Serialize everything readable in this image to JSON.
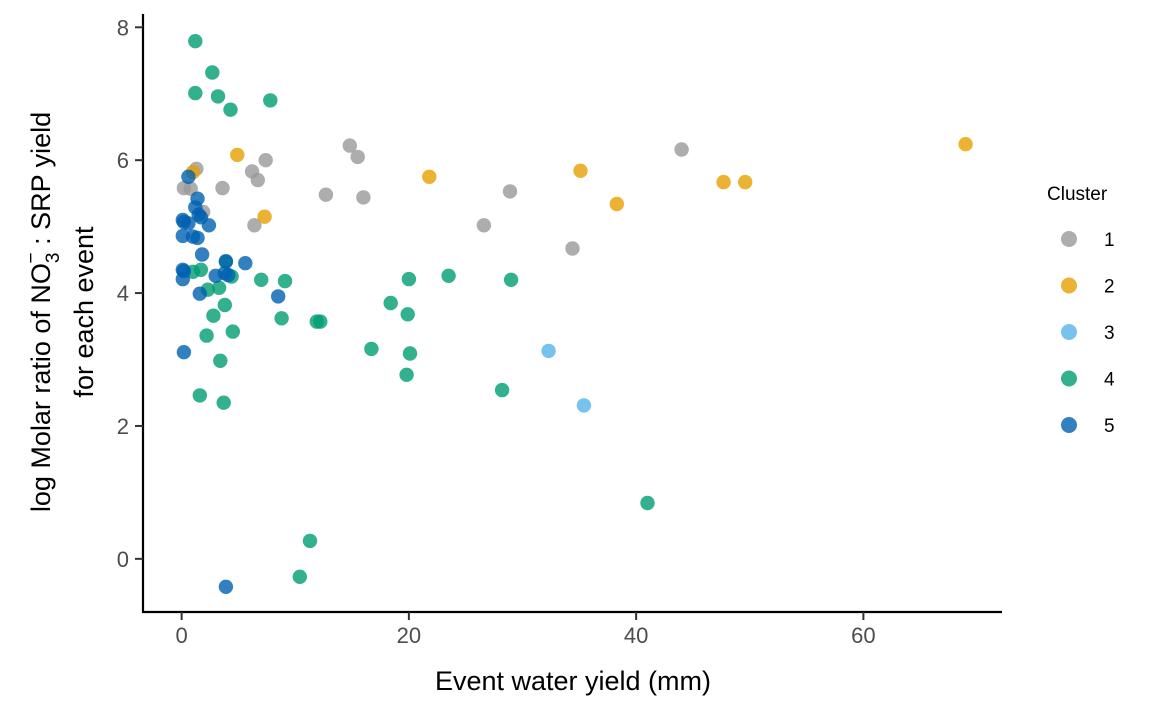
{
  "chart_data": {
    "type": "scatter",
    "xlabel": "Event water yield (mm)",
    "ylabel_line1_pre": "log Molar ratio of NO",
    "ylabel_line1_sub": "3",
    "ylabel_line1_sup": "−",
    "ylabel_line1_post": " : SRP yield",
    "ylabel_line2": "for each event",
    "xlim": [
      -3.4,
      72.2
    ],
    "ylim": [
      -0.8,
      8.2
    ],
    "x_ticks": [
      0,
      20,
      40,
      60
    ],
    "y_ticks": [
      0,
      2,
      4,
      6,
      8
    ],
    "grid": false,
    "legend": {
      "title": "Cluster",
      "position": "right"
    },
    "series": [
      {
        "name": "1",
        "color": "#999999",
        "points": [
          [
            0.2,
            5.58
          ],
          [
            0.8,
            5.57
          ],
          [
            1.3,
            5.87
          ],
          [
            1.9,
            5.22
          ],
          [
            3.6,
            5.58
          ],
          [
            6.2,
            5.83
          ],
          [
            6.7,
            5.7
          ],
          [
            7.4,
            6.0
          ],
          [
            6.4,
            5.02
          ],
          [
            12.7,
            5.48
          ],
          [
            14.8,
            6.22
          ],
          [
            15.5,
            6.05
          ],
          [
            16.0,
            5.44
          ],
          [
            26.6,
            5.02
          ],
          [
            28.9,
            5.53
          ],
          [
            34.4,
            4.67
          ],
          [
            44.0,
            6.16
          ]
        ]
      },
      {
        "name": "2",
        "color": "#E69F00",
        "points": [
          [
            1.0,
            5.82
          ],
          [
            4.9,
            6.08
          ],
          [
            7.3,
            5.15
          ],
          [
            21.8,
            5.75
          ],
          [
            35.1,
            5.84
          ],
          [
            38.3,
            5.34
          ],
          [
            47.7,
            5.67
          ],
          [
            49.6,
            5.67
          ],
          [
            69.0,
            6.24
          ]
        ]
      },
      {
        "name": "3",
        "color": "#56B4E9",
        "points": [
          [
            32.3,
            3.13
          ],
          [
            35.4,
            2.31
          ]
        ]
      },
      {
        "name": "4",
        "color": "#009E73",
        "points": [
          [
            1.2,
            7.79
          ],
          [
            2.7,
            7.32
          ],
          [
            1.2,
            7.01
          ],
          [
            3.2,
            6.96
          ],
          [
            4.3,
            6.76
          ],
          [
            7.8,
            6.9
          ],
          [
            1.0,
            4.32
          ],
          [
            1.7,
            4.35
          ],
          [
            2.3,
            4.05
          ],
          [
            3.3,
            4.08
          ],
          [
            3.8,
            3.82
          ],
          [
            3.9,
            4.47
          ],
          [
            4.4,
            4.25
          ],
          [
            2.8,
            3.66
          ],
          [
            2.2,
            3.36
          ],
          [
            4.5,
            3.42
          ],
          [
            3.4,
            2.98
          ],
          [
            1.6,
            2.46
          ],
          [
            3.7,
            2.35
          ],
          [
            7.0,
            4.2
          ],
          [
            8.8,
            3.62
          ],
          [
            9.1,
            4.18
          ],
          [
            11.9,
            3.57
          ],
          [
            12.2,
            3.57
          ],
          [
            16.7,
            3.16
          ],
          [
            18.4,
            3.85
          ],
          [
            19.9,
            3.68
          ],
          [
            20.0,
            4.21
          ],
          [
            19.8,
            2.77
          ],
          [
            20.1,
            3.09
          ],
          [
            23.5,
            4.26
          ],
          [
            28.2,
            2.54
          ],
          [
            29.0,
            4.2
          ],
          [
            41.0,
            0.84
          ],
          [
            11.3,
            0.27
          ],
          [
            10.4,
            -0.27
          ]
        ]
      },
      {
        "name": "5",
        "color": "#0060B0",
        "points": [
          [
            0.6,
            5.75
          ],
          [
            0.1,
            5.1
          ],
          [
            0.2,
            5.07
          ],
          [
            0.6,
            5.05
          ],
          [
            1.0,
            4.85
          ],
          [
            0.1,
            4.86
          ],
          [
            1.4,
            4.83
          ],
          [
            1.2,
            5.29
          ],
          [
            1.4,
            5.42
          ],
          [
            1.5,
            5.18
          ],
          [
            1.7,
            5.14
          ],
          [
            2.4,
            5.02
          ],
          [
            1.8,
            4.58
          ],
          [
            0.1,
            4.35
          ],
          [
            0.2,
            4.33
          ],
          [
            0.1,
            4.21
          ],
          [
            1.6,
            3.99
          ],
          [
            3.0,
            4.26
          ],
          [
            3.8,
            4.3
          ],
          [
            4.1,
            4.27
          ],
          [
            3.9,
            4.48
          ],
          [
            5.6,
            4.45
          ],
          [
            8.5,
            3.95
          ],
          [
            0.2,
            3.11
          ],
          [
            3.9,
            -0.42
          ]
        ]
      }
    ]
  }
}
